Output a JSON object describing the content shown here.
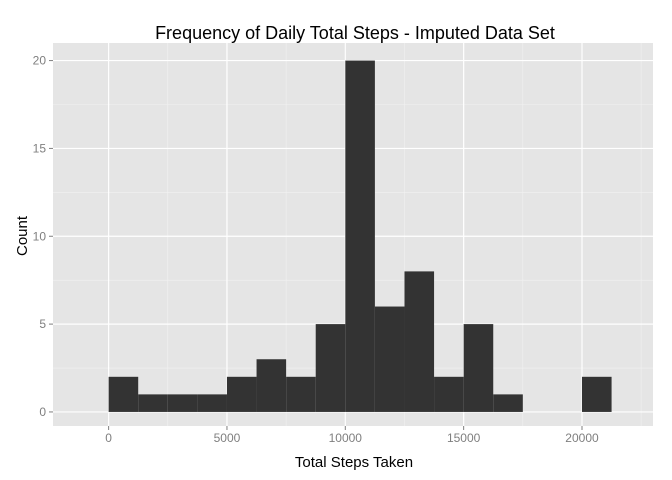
{
  "chart_data": {
    "type": "histogram",
    "title": "Frequency of Daily Total Steps - Imputed Data Set",
    "xlabel": "Total Steps Taken",
    "ylabel": "Count",
    "xlim": [
      -2350,
      23000
    ],
    "ylim": [
      -0.8,
      21
    ],
    "x_ticks": [
      0,
      5000,
      10000,
      15000,
      20000
    ],
    "y_ticks": [
      0,
      5,
      10,
      15,
      20
    ],
    "bin_width": 1250,
    "bins": [
      {
        "x0": 0,
        "x1": 1250,
        "count": 2
      },
      {
        "x0": 1250,
        "x1": 2500,
        "count": 1
      },
      {
        "x0": 2500,
        "x1": 3750,
        "count": 1
      },
      {
        "x0": 3750,
        "x1": 5000,
        "count": 1
      },
      {
        "x0": 5000,
        "x1": 6250,
        "count": 2
      },
      {
        "x0": 6250,
        "x1": 7500,
        "count": 3
      },
      {
        "x0": 7500,
        "x1": 8750,
        "count": 2
      },
      {
        "x0": 8750,
        "x1": 10000,
        "count": 5
      },
      {
        "x0": 10000,
        "x1": 11250,
        "count": 20
      },
      {
        "x0": 11250,
        "x1": 12500,
        "count": 6
      },
      {
        "x0": 12500,
        "x1": 13750,
        "count": 8
      },
      {
        "x0": 13750,
        "x1": 15000,
        "count": 2
      },
      {
        "x0": 15000,
        "x1": 16250,
        "count": 5
      },
      {
        "x0": 16250,
        "x1": 17500,
        "count": 1
      },
      {
        "x0": 17500,
        "x1": 18750,
        "count": 0
      },
      {
        "x0": 18750,
        "x1": 20000,
        "count": 0
      },
      {
        "x0": 20000,
        "x1": 21250,
        "count": 2
      }
    ],
    "grid": true,
    "colors": {
      "panel_background": "#e5e5e5",
      "grid_major": "#ffffff",
      "grid_minor": "#f2f2f2",
      "bar_fill": "#333333",
      "tick_label": "#7f7f7f"
    }
  }
}
